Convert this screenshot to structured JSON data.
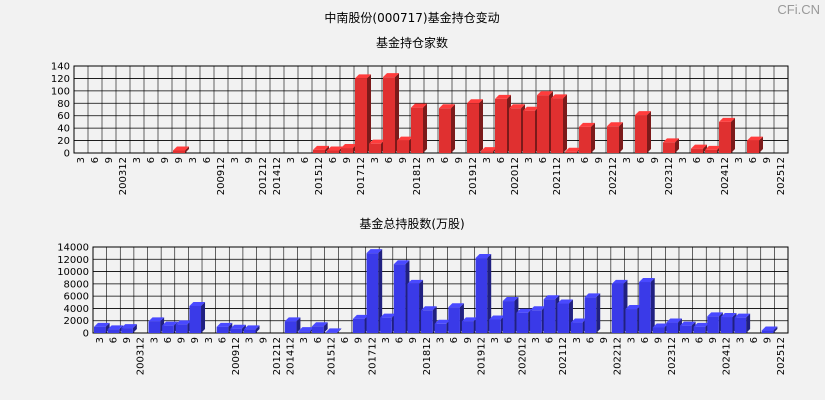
{
  "page_title": "中南股份(000717)基金持仓变动",
  "watermark": "CFi.CN",
  "colors": {
    "top_fill": "#e03030",
    "bottom_fill": "#3a3ae8",
    "grid": "#000000",
    "plot_bg": "#f2f2f2"
  },
  "chart_data": [
    {
      "type": "bar",
      "title": "基金持仓家数",
      "ylim": [
        0,
        140
      ],
      "yticks": [
        0,
        20,
        40,
        60,
        80,
        100,
        120,
        140
      ],
      "grid": true,
      "categories": [
        "3",
        "6",
        "9",
        "200312",
        "3",
        "6",
        "9",
        "9",
        "3",
        "6",
        "200912",
        "3",
        "9",
        "201212",
        "201412",
        "3",
        "6",
        "201512",
        "6",
        "9",
        "201712",
        "3",
        "6",
        "9",
        "201812",
        "3",
        "6",
        "9",
        "201912",
        "3",
        "6",
        "202012",
        "3",
        "6",
        "202112",
        "3",
        "6",
        "9",
        "202212",
        "3",
        "6",
        "9",
        "202312",
        "3",
        "6",
        "9",
        "202412",
        "3",
        "6",
        "9",
        "202512"
      ],
      "values": [
        0,
        0,
        0,
        0,
        0,
        0,
        0,
        4,
        0,
        0,
        0,
        0,
        0,
        0,
        0,
        0,
        0,
        5,
        4,
        8,
        120,
        15,
        122,
        20,
        73,
        0,
        72,
        0,
        80,
        3,
        87,
        72,
        68,
        93,
        88,
        2,
        42,
        0,
        43,
        0,
        61,
        0,
        17,
        0,
        7,
        5,
        50,
        0,
        20,
        0,
        0
      ],
      "xlabel": "",
      "ylabel": ""
    },
    {
      "type": "bar",
      "title": "基金总持股数(万股)",
      "ylim": [
        0,
        14000
      ],
      "yticks": [
        0,
        2000,
        4000,
        6000,
        8000,
        10000,
        12000,
        14000
      ],
      "grid": true,
      "categories": [
        "3",
        "6",
        "9",
        "200312",
        "3",
        "6",
        "9",
        "9",
        "3",
        "6",
        "200912",
        "3",
        "9",
        "201212",
        "201412",
        "3",
        "6",
        "201512",
        "6",
        "9",
        "201712",
        "3",
        "6",
        "9",
        "201812",
        "3",
        "6",
        "9",
        "201912",
        "3",
        "6",
        "202012",
        "3",
        "6",
        "202112",
        "3",
        "6",
        "9",
        "202212",
        "3",
        "6",
        "9",
        "202312",
        "3",
        "6",
        "9",
        "202412",
        "3",
        "6",
        "9",
        "202512"
      ],
      "values": [
        1000,
        600,
        800,
        0,
        1900,
        1200,
        1400,
        4400,
        0,
        1000,
        700,
        600,
        0,
        0,
        1900,
        300,
        1100,
        100,
        0,
        2300,
        13000,
        2500,
        11200,
        8000,
        3700,
        1500,
        4200,
        1900,
        12200,
        2200,
        5200,
        3300,
        3700,
        5500,
        4800,
        1700,
        5800,
        0,
        8000,
        3900,
        8300,
        900,
        1700,
        1200,
        1000,
        2700,
        2600,
        2500,
        0,
        400,
        0
      ],
      "xlabel": "",
      "ylabel": ""
    }
  ]
}
